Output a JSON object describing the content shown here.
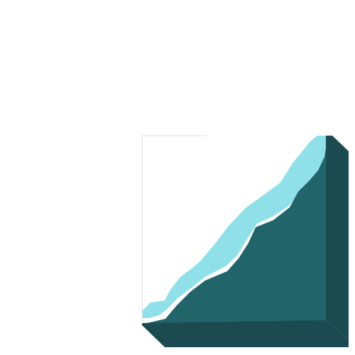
{
  "illustration": {
    "colors": {
      "background": "#ffffff",
      "panel_edge": "#d8dde0",
      "ridge_highlight": "#90e0ea",
      "slope_face": "#21656b",
      "block_side": "#1b4b51",
      "block_base": "#1b4b51"
    },
    "parts": [
      "panel",
      "ridge-highlight",
      "slope-face",
      "block-side",
      "block-base"
    ]
  }
}
